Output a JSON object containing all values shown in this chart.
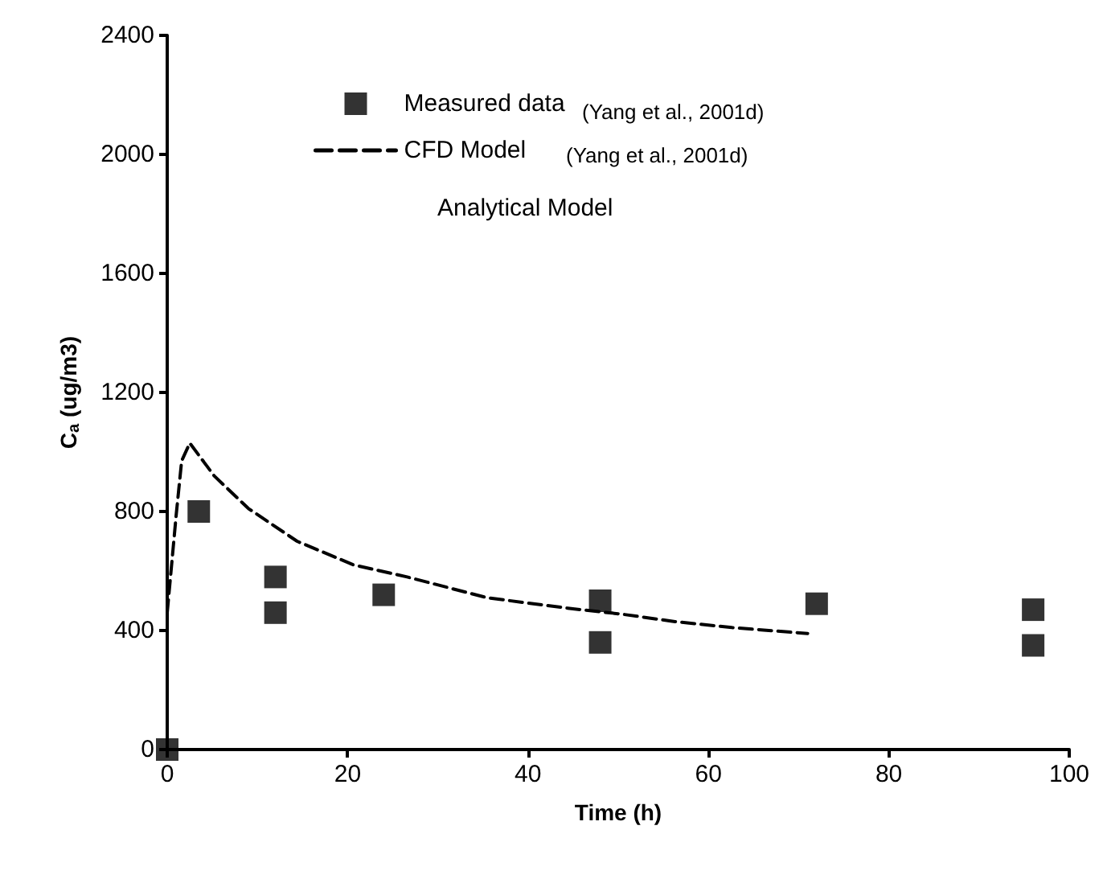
{
  "chart_data": {
    "type": "scatter",
    "xlabel": "Time (h)",
    "ylabel": "C$_{a}$ (ug/m3)",
    "xlim": [
      0,
      100
    ],
    "xticks": [
      0,
      20,
      40,
      60,
      80,
      100
    ],
    "ylim": [
      0,
      2400
    ],
    "yticks": [
      0,
      400,
      800,
      1200,
      1600,
      2000,
      2400
    ],
    "series": [
      {
        "name": "Measured data",
        "marker": "square",
        "color": "#000000",
        "x": [
          0,
          3.5,
          12,
          12,
          24,
          48,
          48,
          72,
          96,
          96
        ],
        "values": [
          0,
          800,
          580,
          460,
          520,
          500,
          360,
          490,
          470,
          350
        ]
      },
      {
        "name": "CFD Model",
        "type": "line",
        "marker": "none",
        "line_style": "dashed",
        "color": "#000000",
        "x": [
          0,
          1,
          1.6,
          2.5,
          5.2,
          9,
          14.4,
          20.7,
          26.6,
          35.5,
          44.4,
          50.4,
          56.3,
          62.6,
          71
        ],
        "values": [
          460,
          790,
          970,
          1030,
          920,
          810,
          700,
          620,
          580,
          510,
          475,
          455,
          430,
          410,
          390
        ]
      }
    ],
    "legend": "top",
    "grid": false,
    "annotations": [
      "(Yang et al., 2001d)",
      "(Yang et al., 2001d)",
      "Analytical Model"
    ]
  }
}
